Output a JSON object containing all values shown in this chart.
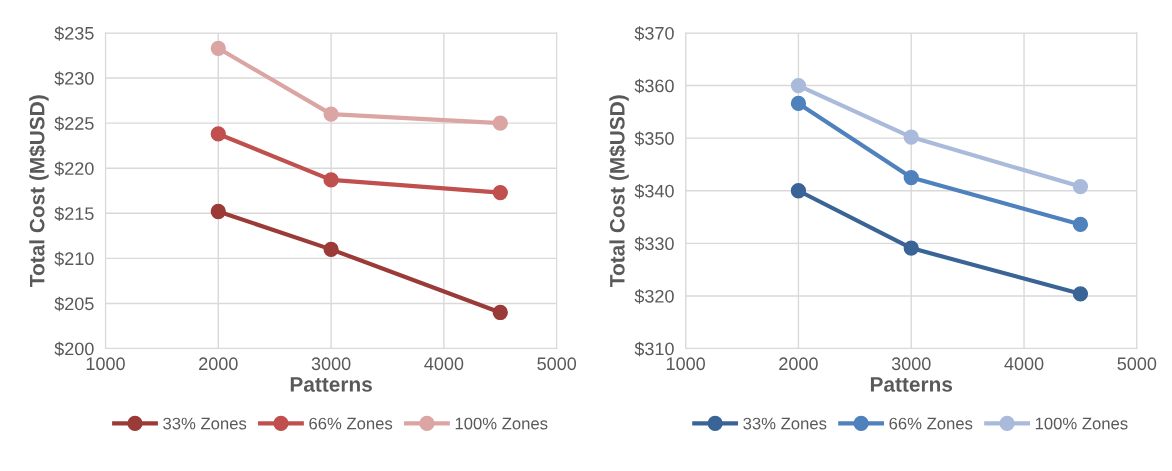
{
  "chart_data": [
    {
      "type": "line",
      "xlabel": "Patterns",
      "ylabel": "Total Cost (M$USD)",
      "x": [
        2000,
        3000,
        4500
      ],
      "series": [
        {
          "name": "33% Zones",
          "color": "#9b3b38",
          "values": [
            215.2,
            211.0,
            204.0
          ]
        },
        {
          "name": "66% Zones",
          "color": "#c0504d",
          "values": [
            223.8,
            218.7,
            217.3
          ]
        },
        {
          "name": "100% Zones",
          "color": "#dba5a4",
          "values": [
            233.3,
            226.0,
            225.0
          ]
        }
      ],
      "xlim": [
        1000,
        5000
      ],
      "xticks": [
        1000,
        2000,
        3000,
        4000,
        5000
      ],
      "ylim": [
        200,
        235
      ],
      "yticks": [
        {
          "value": 200,
          "label": "$200"
        },
        {
          "value": 205,
          "label": "$205"
        },
        {
          "value": 210,
          "label": "$210"
        },
        {
          "value": 215,
          "label": "$215"
        },
        {
          "value": 220,
          "label": "$220"
        },
        {
          "value": 225,
          "label": "$225"
        },
        {
          "value": 230,
          "label": "$230"
        },
        {
          "value": 235,
          "label": "$235"
        }
      ],
      "grid": true,
      "legend": "bottom",
      "marker": "circle",
      "line_style": "solid"
    },
    {
      "type": "line",
      "xlabel": "Patterns",
      "ylabel": "Total Cost (M$USD)",
      "x": [
        2000,
        3000,
        4500
      ],
      "series": [
        {
          "name": "33% Zones",
          "color": "#3a6496",
          "values": [
            340.0,
            329.1,
            320.4
          ]
        },
        {
          "name": "66% Zones",
          "color": "#4f81bd",
          "values": [
            356.6,
            342.5,
            333.6
          ]
        },
        {
          "name": "100% Zones",
          "color": "#a9badb",
          "values": [
            360.0,
            350.2,
            340.8
          ]
        }
      ],
      "xlim": [
        1000,
        5000
      ],
      "xticks": [
        1000,
        2000,
        3000,
        4000,
        5000
      ],
      "ylim": [
        310,
        370
      ],
      "yticks": [
        {
          "value": 310,
          "label": "$310"
        },
        {
          "value": 320,
          "label": "$320"
        },
        {
          "value": 330,
          "label": "$330"
        },
        {
          "value": 340,
          "label": "$340"
        },
        {
          "value": 350,
          "label": "$350"
        },
        {
          "value": 360,
          "label": "$360"
        },
        {
          "value": 370,
          "label": "$370"
        }
      ],
      "grid": true,
      "legend": "bottom",
      "marker": "circle",
      "line_style": "solid"
    }
  ]
}
